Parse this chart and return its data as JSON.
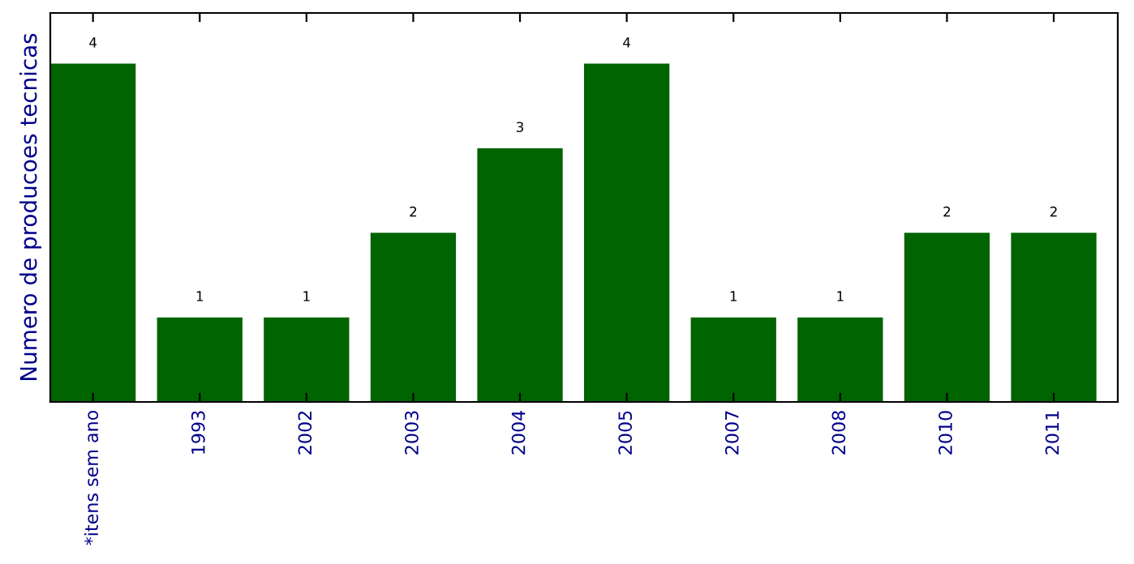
{
  "chart_data": {
    "type": "bar",
    "ylabel": "Numero de producoes tecnicas",
    "categories": [
      "*itens sem ano",
      "1993",
      "2002",
      "2003",
      "2004",
      "2005",
      "2007",
      "2008",
      "2010",
      "2011"
    ],
    "values": [
      4,
      1,
      1,
      2,
      3,
      4,
      1,
      1,
      2,
      2
    ],
    "color": "#006400",
    "data_labels": true,
    "tick_labels": "x",
    "grid": false
  }
}
